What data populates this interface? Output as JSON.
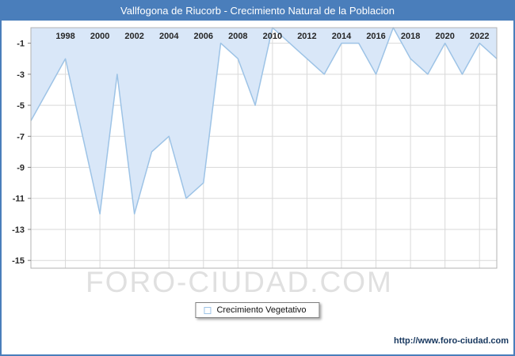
{
  "title": "Vallfogona de Riucorb - Crecimiento Natural de la Poblacion",
  "watermark": "FORO-CIUDAD.COM",
  "legend": {
    "label": "Crecimiento Vegetativo"
  },
  "footer": {
    "url": "http://www.foro-ciudad.com"
  },
  "colors": {
    "border": "#4a7ebb",
    "titlebar": "#4a7ebb",
    "area_fill": "#d9e7f8",
    "line": "#9dc3e6",
    "grid": "#d9d9d9",
    "plot_border": "#b3b3b3",
    "tick": "#808080",
    "label": "#262626",
    "watermark": "#e0e0e0"
  },
  "chart_data": {
    "type": "area",
    "title": "Vallfogona de Riucorb - Crecimiento Natural de la Poblacion",
    "series_name": "Crecimiento Vegetativo",
    "x": [
      1996,
      1997,
      1998,
      1999,
      2000,
      2001,
      2002,
      2003,
      2004,
      2005,
      2006,
      2007,
      2008,
      2009,
      2010,
      2011,
      2012,
      2013,
      2014,
      2015,
      2016,
      2017,
      2018,
      2019,
      2020,
      2021,
      2022,
      2023
    ],
    "values": [
      -6,
      -4,
      -2,
      -7,
      -12,
      -3,
      -12,
      -8,
      -7,
      -11,
      -10,
      -1,
      -2,
      -5,
      0,
      -1,
      -2,
      -3,
      -1,
      -1,
      -3,
      0,
      -2,
      -3,
      -1,
      -3,
      -1,
      -2
    ],
    "xticks": [
      1998,
      2000,
      2002,
      2004,
      2006,
      2008,
      2010,
      2012,
      2014,
      2016,
      2018,
      2020,
      2022
    ],
    "yticks": [
      -1,
      -3,
      -5,
      -7,
      -9,
      -11,
      -13,
      -15
    ],
    "ylim": [
      -15.5,
      0
    ],
    "grid": true,
    "legend_position": "bottom",
    "xlabel": "",
    "ylabel": ""
  }
}
